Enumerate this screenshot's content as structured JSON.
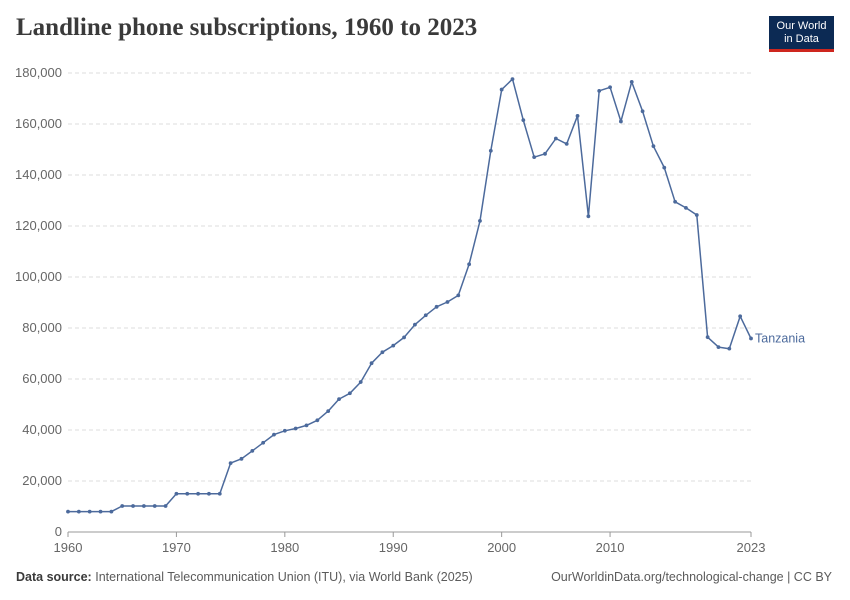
{
  "header": {
    "title": "Landline phone subscriptions, 1960 to 2023",
    "logo_line1": "Our World",
    "logo_line2": "in Data"
  },
  "footer": {
    "source_label": "Data source:",
    "source_text": "International Telecommunication Union (ITU), via World Bank (2025)",
    "link_text": "OurWorldinData.org/technological-change | CC BY"
  },
  "colors": {
    "series": "#4c6a9c",
    "grid": "#dddddd",
    "axis": "#999999",
    "brand": "#0c2a54",
    "accent": "#ce261e"
  },
  "chart_data": {
    "type": "line",
    "title": "Landline phone subscriptions, 1960 to 2023",
    "xlabel": "",
    "ylabel": "",
    "xlim": [
      1960,
      2023
    ],
    "ylim": [
      0,
      180000
    ],
    "grid": true,
    "y_ticks": [
      0,
      20000,
      40000,
      60000,
      80000,
      100000,
      120000,
      140000,
      160000,
      180000
    ],
    "y_tick_labels": [
      "0",
      "20,000",
      "40,000",
      "60,000",
      "80,000",
      "100,000",
      "120,000",
      "140,000",
      "160,000",
      "180,000"
    ],
    "x_ticks": [
      1960,
      1970,
      1980,
      1990,
      2000,
      2010,
      2023
    ],
    "x_tick_labels": [
      "1960",
      "1970",
      "1980",
      "1990",
      "2000",
      "2010",
      "2023"
    ],
    "series": [
      {
        "name": "Tanzania",
        "x": [
          1960,
          1961,
          1962,
          1963,
          1964,
          1965,
          1966,
          1967,
          1968,
          1969,
          1970,
          1971,
          1972,
          1973,
          1974,
          1975,
          1976,
          1977,
          1978,
          1979,
          1980,
          1981,
          1982,
          1983,
          1984,
          1985,
          1986,
          1987,
          1988,
          1989,
          1990,
          1991,
          1992,
          1993,
          1994,
          1995,
          1996,
          1997,
          1998,
          1999,
          2000,
          2001,
          2002,
          2003,
          2004,
          2005,
          2006,
          2007,
          2008,
          2009,
          2010,
          2011,
          2012,
          2013,
          2014,
          2015,
          2016,
          2017,
          2018,
          2019,
          2020,
          2021,
          2022,
          2023
        ],
        "values": [
          8000,
          8000,
          8000,
          8000,
          8000,
          10200,
          10200,
          10200,
          10200,
          10200,
          15000,
          15000,
          15000,
          15000,
          15000,
          27000,
          28700,
          31800,
          35000,
          38200,
          39700,
          40600,
          41800,
          43800,
          47400,
          52100,
          54400,
          58800,
          66200,
          70500,
          73100,
          76300,
          81300,
          85000,
          88300,
          90200,
          92800,
          105000,
          122000,
          149500,
          173500,
          177600,
          161500,
          147000,
          148300,
          154300,
          152200,
          163200,
          123800,
          173000,
          174400,
          161000,
          176500,
          165000,
          151300,
          142900,
          129500,
          127100,
          124300,
          76400,
          72500,
          71900,
          84600,
          75900
        ]
      }
    ]
  }
}
